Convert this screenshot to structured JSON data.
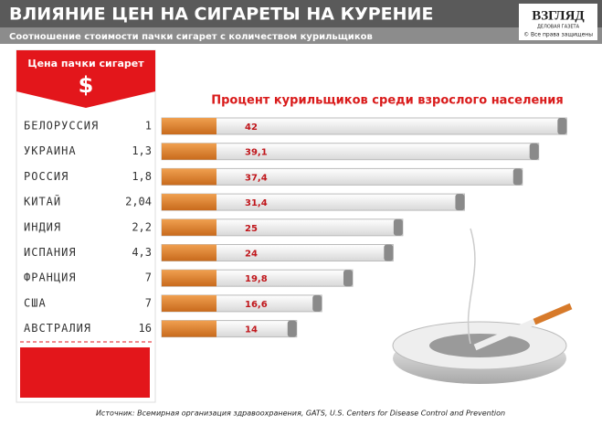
{
  "chart_data": {
    "type": "bar",
    "orientation": "horizontal",
    "title": "ВЛИЯНИЕ ЦЕН НА СИГАРЕТЫ НА КУРЕНИЕ",
    "subtitle": "Соотношение стоимости пачки сигарет с количеством курильщиков",
    "value_title": "Процент курильщиков среди взрослого населения",
    "price_column": {
      "title": "Цена пачки сигарет",
      "symbol": "$",
      "rows": [
        "1",
        "1,3",
        "1,8",
        "2,04",
        "2,2",
        "4,3",
        "7",
        "7",
        "16"
      ]
    },
    "categories": [
      "БЕЛОРУССИЯ",
      "УКРАИНА",
      "РОССИЯ",
      "КИТАЙ",
      "ИНДИЯ",
      "ИСПАНИЯ",
      "ФРАНЦИЯ",
      "США",
      "АВСТРАЛИЯ"
    ],
    "values": [
      42,
      39.1,
      37.4,
      31.4,
      25,
      24,
      19.8,
      16.6,
      14
    ],
    "value_labels": [
      "42",
      "39,1",
      "37,4",
      "31,4",
      "25",
      "24",
      "19,8",
      "16,6",
      "14"
    ],
    "xlim": [
      0,
      45
    ],
    "logo": {
      "name": "ВЗГЛЯД",
      "tagline": "ДЕЛОВАЯ ГАЗЕТА",
      "rights": "© Все права защищены"
    },
    "source": "Источник: Всемирная организация здравоохранения, GATS, U.S. Centers for Disease Control and Prevention"
  }
}
